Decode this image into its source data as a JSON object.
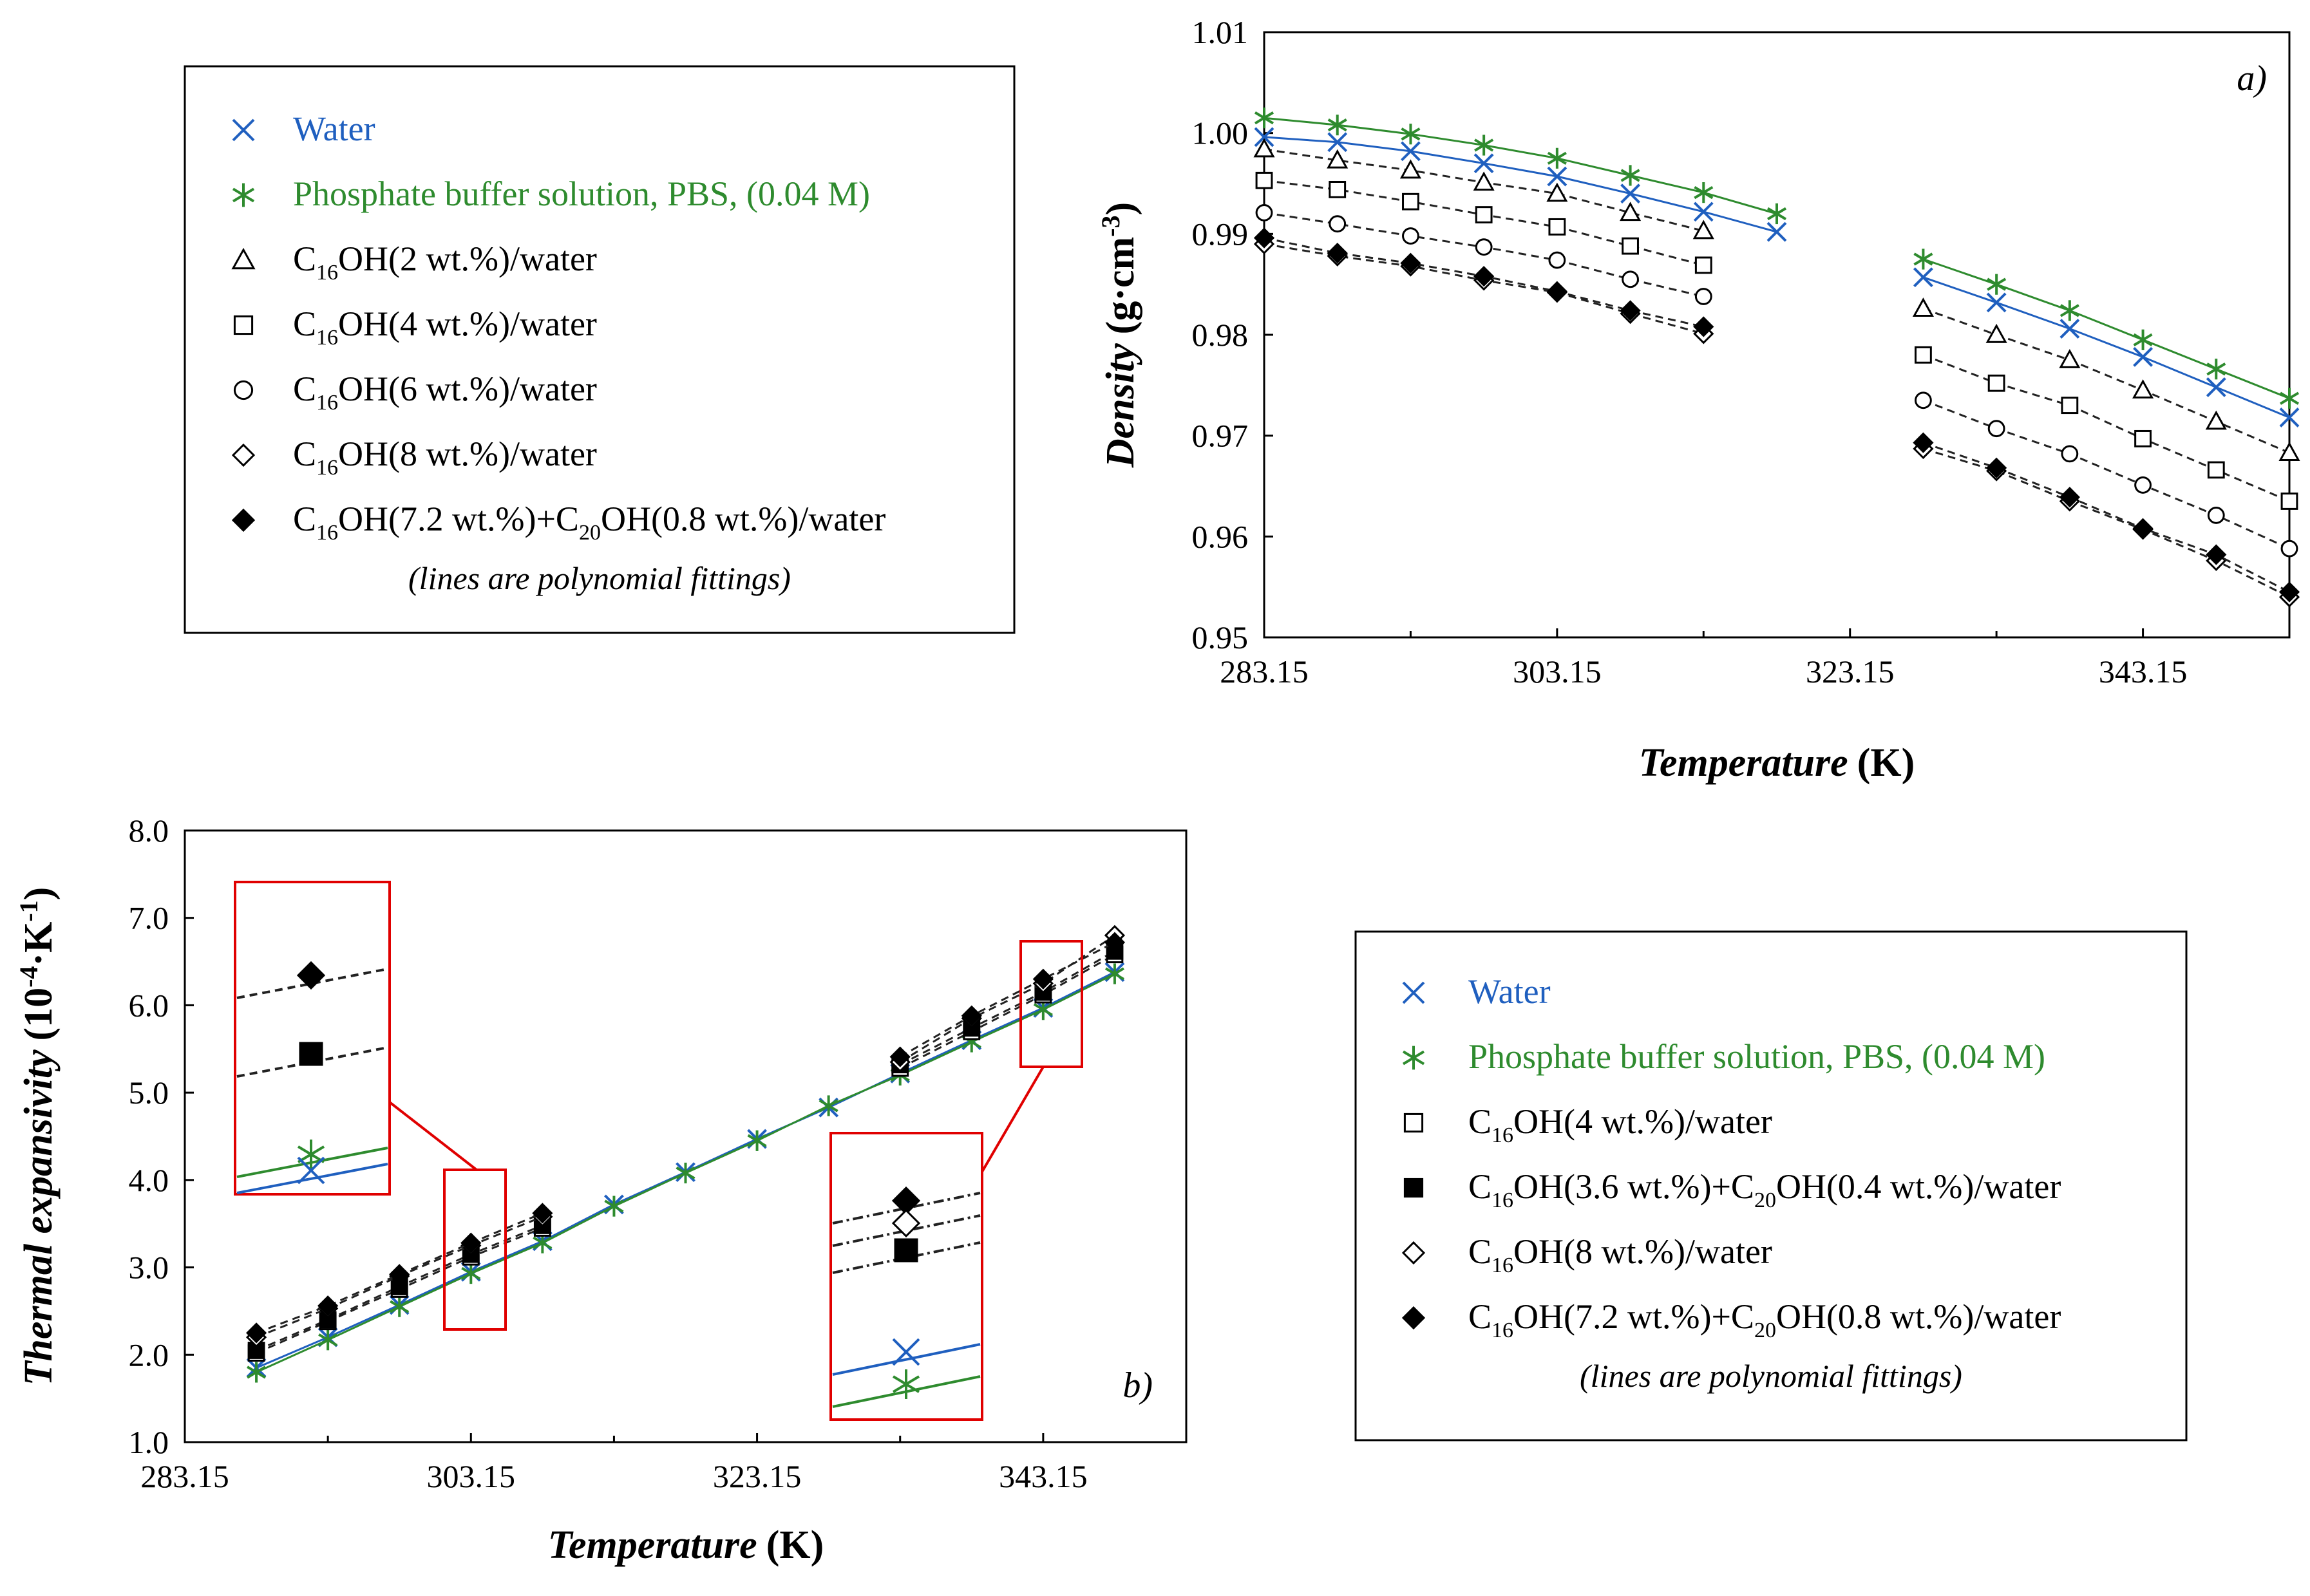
{
  "chart_data": [
    {
      "type": "line",
      "panel_label": "a)",
      "xlabel": "Temperature",
      "xunit": "(K)",
      "ylabel": "Density",
      "yunit": "(g·cm",
      "yunit_sup": "-3",
      "yunit_end": ")",
      "xlim": [
        283.15,
        353.15
      ],
      "ylim": [
        0.95,
        1.01
      ],
      "xticks": [
        283.15,
        303.15,
        323.15,
        343.15
      ],
      "xtick_labels": [
        "283.15",
        "303.15",
        "323.15",
        "343.15"
      ],
      "yticks": [
        0.95,
        0.96,
        0.97,
        0.98,
        0.99,
        1.0,
        1.01
      ],
      "ytick_labels": [
        "0.95",
        "0.96",
        "0.97",
        "0.98",
        "0.99",
        "1.00",
        "1.01"
      ],
      "legend": {
        "items": [
          {
            "marker": "x",
            "color": "#1f5fbf",
            "text": "Water"
          },
          {
            "marker": "star",
            "color": "#2e8b2e",
            "text": "Phosphate buffer solution, PBS, (0.04 M)"
          },
          {
            "marker": "triangle",
            "color": "#000000",
            "pre": "C",
            "sub": "16",
            "text": "OH(2 wt.%)/water"
          },
          {
            "marker": "square",
            "color": "#000000",
            "pre": "C",
            "sub": "16",
            "text": "OH(4 wt.%)/water"
          },
          {
            "marker": "circle",
            "color": "#000000",
            "pre": "C",
            "sub": "16",
            "text": "OH(6 wt.%)/water"
          },
          {
            "marker": "diamond",
            "color": "#000000",
            "pre": "C",
            "sub": "16",
            "text": "OH(8 wt.%)/water"
          },
          {
            "marker": "diamond-filled",
            "color": "#000000",
            "pre": "C",
            "sub": "16",
            "text": "OH(7.2 wt.%)+C",
            "sub2": "20",
            "text2": "OH(0.8 wt.%)/water"
          }
        ],
        "note": "(lines are polynomial fittings)"
      },
      "series": [
        {
          "name": "Water",
          "marker": "x",
          "color": "#1f5fbf",
          "x": [
            283.15,
            288.15,
            293.15,
            298.15,
            303.15,
            308.15,
            313.15,
            318.15,
            328.15,
            333.15,
            338.15,
            343.15,
            348.15,
            353.15
          ],
          "y": [
            0.9996,
            0.9991,
            0.9982,
            0.997,
            0.9957,
            0.994,
            0.9922,
            0.9902,
            0.9857,
            0.9832,
            0.9806,
            0.9778,
            0.9748,
            0.9718
          ]
        },
        {
          "name": "Phosphate buffer solution, PBS, (0.04 M)",
          "marker": "star",
          "color": "#2e8b2e",
          "x": [
            283.15,
            288.15,
            293.15,
            298.15,
            303.15,
            308.15,
            313.15,
            318.15,
            328.15,
            333.15,
            338.15,
            343.15,
            348.15,
            353.15
          ],
          "y": [
            1.0015,
            1.0008,
            0.9999,
            0.9988,
            0.9975,
            0.9958,
            0.9941,
            0.992,
            0.9875,
            0.985,
            0.9824,
            0.9795,
            0.9766,
            0.9737
          ]
        },
        {
          "name": "C16OH(2 wt.%)/water",
          "marker": "triangle",
          "color": "#000000",
          "dash": "12,8",
          "x": [
            283.15,
            288.15,
            293.15,
            298.15,
            303.15,
            308.15,
            313.15,
            328.15,
            333.15,
            338.15,
            343.15,
            348.15,
            353.15
          ],
          "y": [
            0.9984,
            0.9973,
            0.9963,
            0.9951,
            0.994,
            0.9921,
            0.9903,
            0.9826,
            0.98,
            0.9775,
            0.9745,
            0.9714,
            0.9683
          ]
        },
        {
          "name": "C16OH(4 wt.%)/water",
          "marker": "square",
          "color": "#000000",
          "dash": "12,8",
          "x": [
            283.15,
            288.15,
            293.15,
            298.15,
            303.15,
            308.15,
            313.15,
            328.15,
            333.15,
            338.15,
            343.15,
            348.15,
            353.15
          ],
          "y": [
            0.9953,
            0.9944,
            0.9932,
            0.9919,
            0.9907,
            0.9888,
            0.9869,
            0.978,
            0.9752,
            0.973,
            0.9697,
            0.9666,
            0.9635
          ]
        },
        {
          "name": "C16OH(6 wt.%)/water",
          "marker": "circle",
          "color": "#000000",
          "dash": "12,8",
          "x": [
            283.15,
            288.15,
            293.15,
            298.15,
            303.15,
            308.15,
            313.15,
            328.15,
            333.15,
            338.15,
            343.15,
            348.15,
            353.15
          ],
          "y": [
            0.9921,
            0.991,
            0.9898,
            0.9887,
            0.9874,
            0.9855,
            0.9838,
            0.9735,
            0.9707,
            0.9682,
            0.9651,
            0.9621,
            0.9588
          ]
        },
        {
          "name": "C16OH(8 wt.%)/water",
          "marker": "diamond",
          "color": "#000000",
          "dash": "12,8",
          "x": [
            283.15,
            288.15,
            293.15,
            298.15,
            303.15,
            308.15,
            313.15,
            328.15,
            333.15,
            338.15,
            343.15,
            348.15,
            353.15
          ],
          "y": [
            0.989,
            0.9878,
            0.9868,
            0.9854,
            0.9842,
            0.9821,
            0.9801,
            0.9687,
            0.9665,
            0.9635,
            0.9607,
            0.9576,
            0.954
          ]
        },
        {
          "name": "C16OH(7.2 wt.%)+C20OH(0.8 wt.%)/water",
          "marker": "diamond-filled",
          "color": "#000000",
          "dash": "12,8",
          "x": [
            283.15,
            288.15,
            293.15,
            298.15,
            303.15,
            308.15,
            313.15,
            328.15,
            333.15,
            338.15,
            343.15,
            348.15,
            353.15
          ],
          "y": [
            0.9896,
            0.9881,
            0.9871,
            0.9858,
            0.9843,
            0.9824,
            0.9808,
            0.9693,
            0.9668,
            0.9639,
            0.9608,
            0.9582,
            0.9545
          ]
        }
      ]
    },
    {
      "type": "line",
      "panel_label": "b)",
      "xlabel": "Temperature",
      "xunit": "(K)",
      "ylabel": "Thermal expansivity",
      "yunit": "(10",
      "yunit_sup": "-4",
      "yunit_mid": "·K",
      "yunit_sup2": "-1",
      "yunit_end": ")",
      "xlim": [
        283.15,
        353.15
      ],
      "ylim": [
        1.0,
        8.0
      ],
      "xticks": [
        283.15,
        303.15,
        323.15,
        343.15
      ],
      "xtick_labels": [
        "283.15",
        "303.15",
        "323.15",
        "343.15"
      ],
      "yticks": [
        1.0,
        2.0,
        3.0,
        4.0,
        5.0,
        6.0,
        7.0,
        8.0
      ],
      "ytick_labels": [
        "1.0",
        "2.0",
        "3.0",
        "4.0",
        "5.0",
        "6.0",
        "7.0",
        "8.0"
      ],
      "legend": {
        "items": [
          {
            "marker": "x",
            "color": "#1f5fbf",
            "text": "Water"
          },
          {
            "marker": "star",
            "color": "#2e8b2e",
            "text": "Phosphate buffer solution, PBS, (0.04 M)"
          },
          {
            "marker": "square",
            "color": "#000000",
            "pre": "C",
            "sub": "16",
            "text": "OH(4 wt.%)/water"
          },
          {
            "marker": "square-filled",
            "color": "#000000",
            "pre": "C",
            "sub": "16",
            "text": "OH(3.6 wt.%)+C",
            "sub2": "20",
            "text2": "OH(0.4 wt.%)/water"
          },
          {
            "marker": "diamond",
            "color": "#000000",
            "pre": "C",
            "sub": "16",
            "text": "OH(8 wt.%)/water"
          },
          {
            "marker": "diamond-filled",
            "color": "#000000",
            "pre": "C",
            "sub": "16",
            "text": "OH(7.2 wt.%)+C",
            "sub2": "20",
            "text2": "OH(0.8 wt.%)/water"
          }
        ],
        "note": "(lines are polynomial fittings)"
      },
      "series": [
        {
          "name": "Water",
          "marker": "x",
          "color": "#1f5fbf",
          "x": [
            288.15,
            293.15,
            298.15,
            303.15,
            308.15,
            313.15,
            318.15,
            323.15,
            328.15,
            333.15,
            338.15,
            343.15,
            348.15
          ],
          "y": [
            1.85,
            2.2,
            2.57,
            2.95,
            3.3,
            3.72,
            4.09,
            4.47,
            4.83,
            5.22,
            5.6,
            5.97,
            6.38
          ]
        },
        {
          "name": "Phosphate buffer solution, PBS, (0.04 M)",
          "marker": "star",
          "color": "#2e8b2e",
          "x": [
            288.15,
            293.15,
            298.15,
            303.15,
            308.15,
            313.15,
            318.15,
            323.15,
            328.15,
            333.15,
            338.15,
            343.15,
            348.15
          ],
          "y": [
            1.8,
            2.17,
            2.55,
            2.93,
            3.28,
            3.7,
            4.08,
            4.45,
            4.85,
            5.2,
            5.58,
            5.95,
            6.36
          ]
        },
        {
          "name": "C16OH(4 wt.%)/water",
          "marker": "square",
          "color": "#000000",
          "dash": "12,8",
          "x": [
            288.15,
            293.15,
            298.15,
            303.15,
            308.15,
            333.15,
            338.15,
            343.15,
            348.15
          ],
          "y": [
            2.02,
            2.38,
            2.75,
            3.12,
            3.45,
            5.28,
            5.7,
            6.12,
            6.58
          ]
        },
        {
          "name": "C16OH(3.6 wt.%)+C20OH(0.4 wt.%)/water",
          "marker": "square-filled",
          "color": "#000000",
          "dash": "12,8",
          "x": [
            288.15,
            293.15,
            298.15,
            303.15,
            308.15,
            333.15,
            338.15,
            343.15,
            348.15
          ],
          "y": [
            2.05,
            2.4,
            2.78,
            3.15,
            3.48,
            5.32,
            5.74,
            6.15,
            6.62
          ]
        },
        {
          "name": "C16OH(8 wt.%)/water",
          "marker": "diamond",
          "color": "#000000",
          "dash": "12,8",
          "x": [
            288.15,
            293.15,
            298.15,
            303.15,
            308.15,
            333.15,
            338.15,
            343.15,
            348.15
          ],
          "y": [
            2.2,
            2.53,
            2.9,
            3.25,
            3.58,
            5.35,
            5.85,
            6.25,
            6.8
          ]
        },
        {
          "name": "C16OH(7.2 wt.%)+C20OH(0.8 wt.%)/water",
          "marker": "diamond-filled",
          "color": "#000000",
          "dash": "12,8",
          "x": [
            288.15,
            293.15,
            298.15,
            303.15,
            308.15,
            333.15,
            338.15,
            343.15,
            348.15
          ],
          "y": [
            2.25,
            2.56,
            2.92,
            3.28,
            3.62,
            5.41,
            5.88,
            6.3,
            6.72
          ]
        }
      ]
    }
  ]
}
